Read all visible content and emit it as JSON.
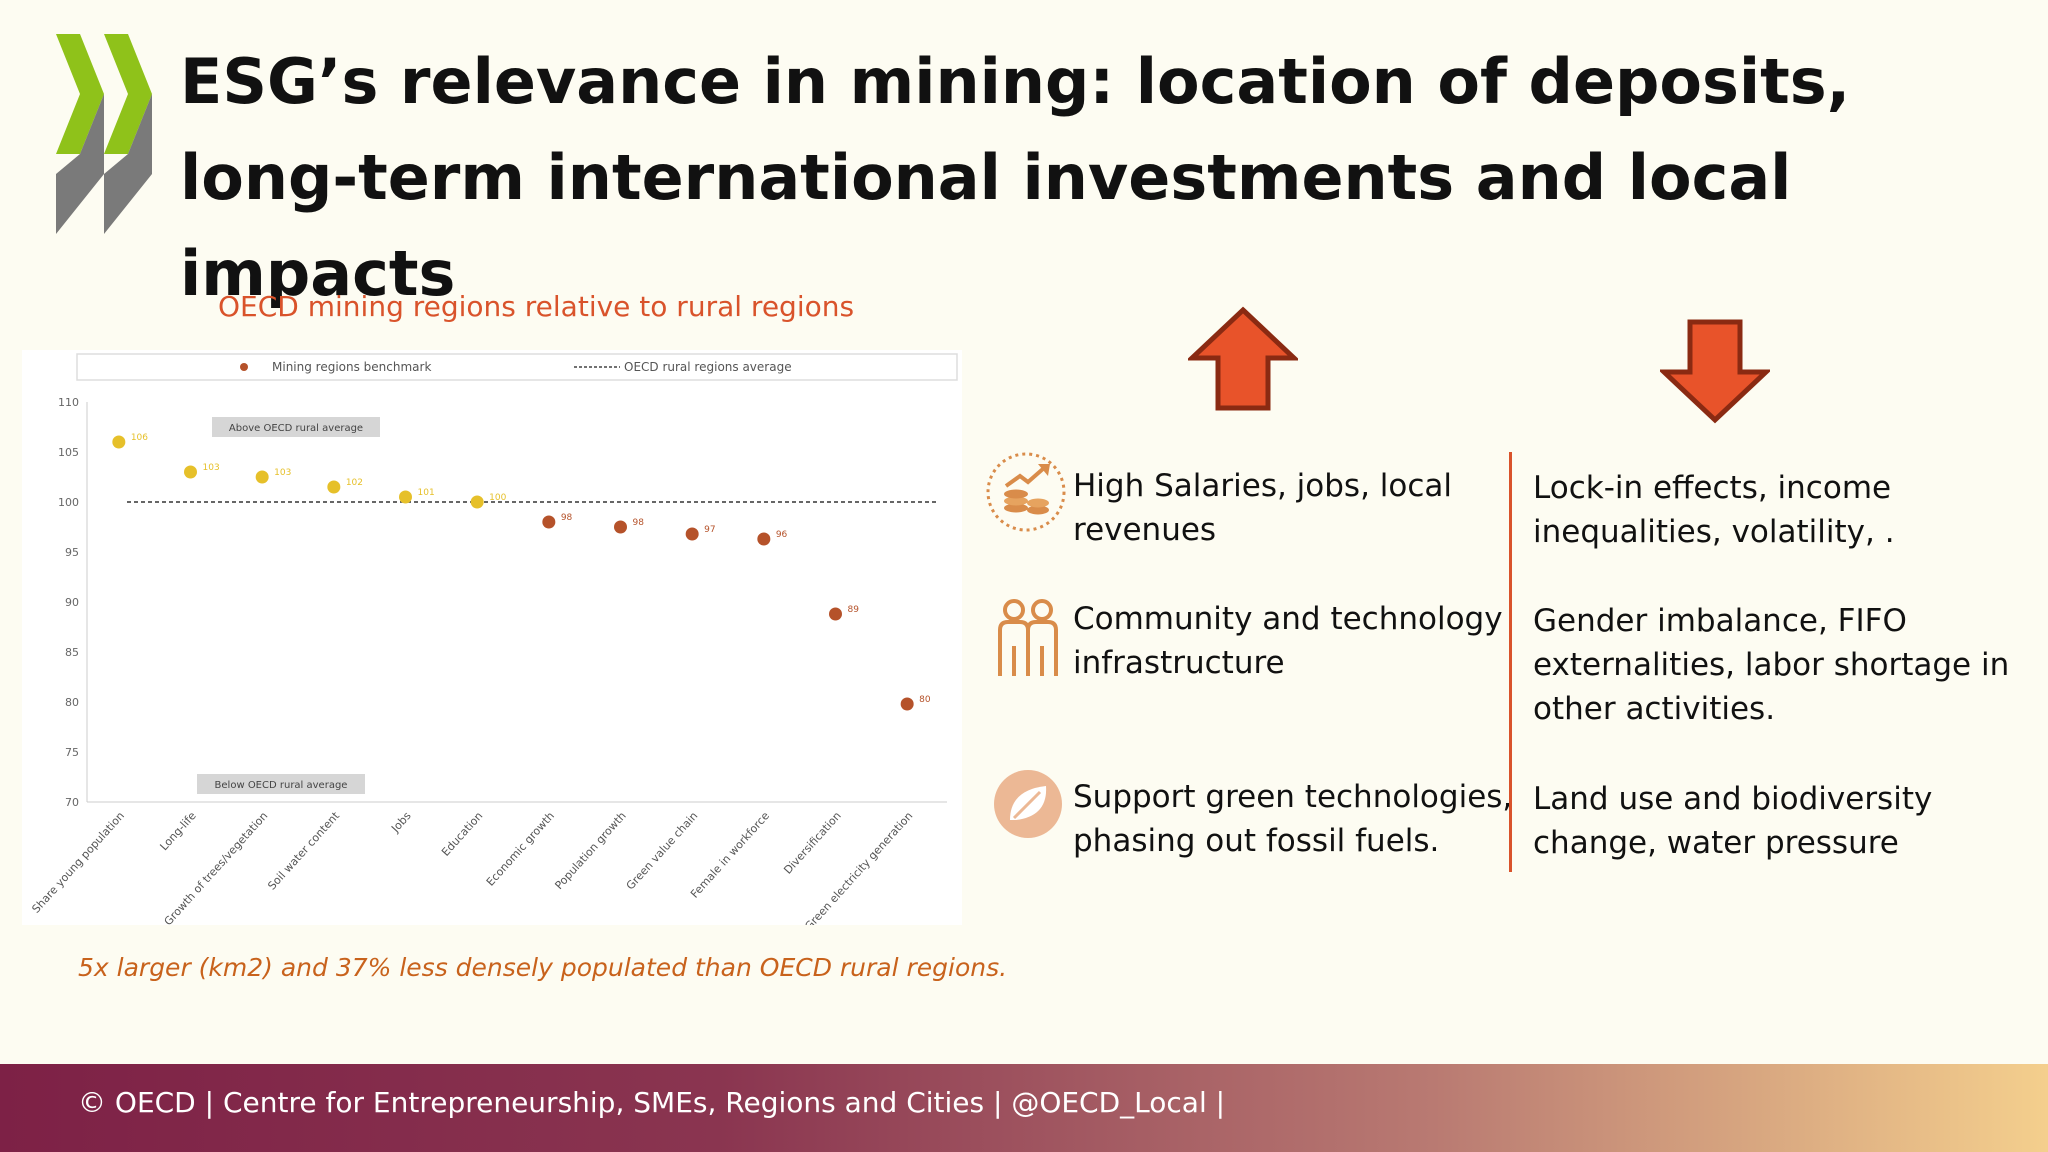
{
  "slide": {
    "title": "ESG’s relevance in mining: location of deposits, long-term international investments and local impacts",
    "chart_title": "OECD mining regions relative to rural regions",
    "chart_note": "5x larger (km2) and 37% less densely populated than OECD rural regions.",
    "footer": "© OECD | Centre for Entrepreneurship, SMEs, Regions and Cities | @OECD_Local |",
    "colors": {
      "accent": "#d9532b",
      "logo_green": "#8fc21a",
      "logo_gray": "#7a7a7a",
      "icon_orange": "#d98c4a"
    }
  },
  "benefits": [
    {
      "icon": "coins-growth-icon",
      "text": "High Salaries, jobs, local revenues"
    },
    {
      "icon": "people-icon",
      "text": "Community and technology infrastructure"
    },
    {
      "icon": "leaf-icon",
      "text": "Support green technologies, phasing out fossil fuels."
    }
  ],
  "risks": [
    {
      "text": "Lock-in effects, income inequalities, volatility, ."
    },
    {
      "text": "Gender imbalance, FIFO externalities, labor shortage in other activities."
    },
    {
      "text": "Land use and biodiversity change, water pressure"
    }
  ],
  "chart_data": {
    "type": "scatter",
    "legend": {
      "entries": [
        "Mining regions benchmark",
        "OECD rural regions average"
      ],
      "placement": "top"
    },
    "categories": [
      "Share young population",
      "Long-life",
      "Growth of trees/vegetation",
      "Soil water content",
      "Jobs",
      "Education",
      "Economic growth",
      "Population growth",
      "Green value chain",
      "Female in workforce",
      "Diversification",
      "Green electricity generation"
    ],
    "values": [
      106,
      103,
      102.5,
      101.5,
      100.5,
      100,
      98,
      97.5,
      96.8,
      96.3,
      88.8,
      79.8
    ],
    "value_labels": [
      "106",
      "103",
      "103",
      "102",
      "101",
      "100",
      "98",
      "98",
      "97",
      "96",
      "89",
      "80"
    ],
    "reference_line": 100,
    "above_label": "Above OECD rural average",
    "below_label": "Below OECD rural average",
    "ylim": [
      70,
      110
    ],
    "yticks": [
      70,
      75,
      80,
      85,
      90,
      95,
      100,
      105,
      110
    ],
    "colors": {
      "above": "#e6c02a",
      "below": "#b5522a"
    }
  }
}
